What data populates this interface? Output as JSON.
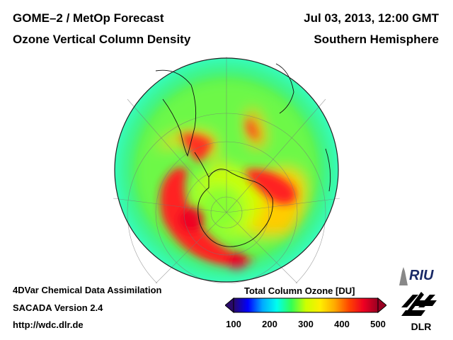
{
  "header": {
    "title_line1": "GOME–2 / MetOp Forecast",
    "title_line2": "Ozone Vertical Column Density",
    "date": "Jul 03, 2013, 12:00 GMT",
    "hemisphere": "Southern Hemisphere"
  },
  "footer": {
    "line1": "4DVar Chemical Data Assimilation",
    "line2": "SACADA Version 2.4",
    "line3": "http://wdc.dlr.de"
  },
  "colorbar": {
    "title": "Total Column Ozone [DU]",
    "ticks": [
      "100",
      "200",
      "300",
      "400",
      "500"
    ],
    "range": [
      100,
      500
    ],
    "colors": [
      "#2a0a6a",
      "#0000ff",
      "#00aaff",
      "#00ffee",
      "#33ff55",
      "#ccff00",
      "#ffee00",
      "#ffaa00",
      "#ff4400",
      "#ee0022",
      "#990022"
    ]
  },
  "logos": {
    "riu": "RIU",
    "dlr": "DLR"
  },
  "map_colors": {
    "ocean_base": "#44ee66",
    "low": "#33ffcc",
    "mid": "#ffee00",
    "high": "#ff2222"
  }
}
